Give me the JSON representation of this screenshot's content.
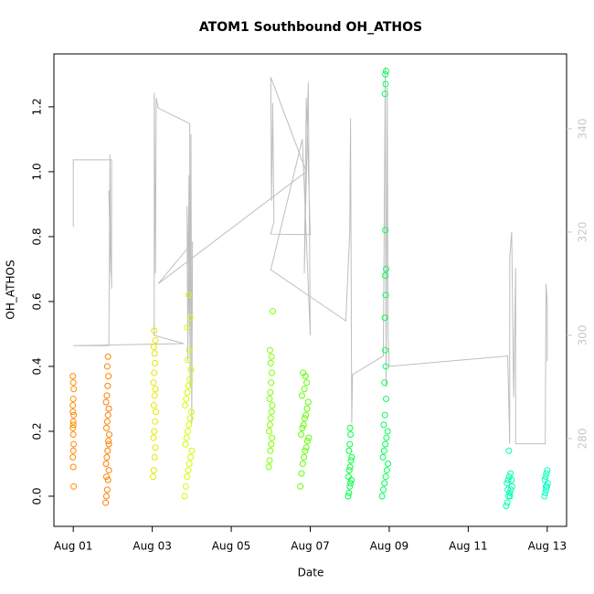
{
  "chart_data": {
    "type": "scatter",
    "title": "ATOM1 Southbound OH_ATHOS",
    "x_label": "Date",
    "y_label": "OH_ATHOS",
    "xlim": [
      0.51,
      13.49
    ],
    "ylim": [
      -0.093,
      1.363
    ],
    "y2lim": [
      263.0,
      354.5
    ],
    "xticks": [
      {
        "value": 1,
        "label": "Aug 01"
      },
      {
        "value": 3,
        "label": "Aug 03"
      },
      {
        "value": 5,
        "label": "Aug 05"
      },
      {
        "value": 7,
        "label": "Aug 07"
      },
      {
        "value": 9,
        "label": "Aug 09"
      },
      {
        "value": 11,
        "label": "Aug 11"
      },
      {
        "value": 13,
        "label": "Aug 13"
      }
    ],
    "yticks": [
      {
        "value": 0,
        "label": "0.0"
      },
      0.2,
      0.4,
      0.6,
      0.8,
      {
        "value": 1,
        "label": "1.0"
      },
      1.2
    ],
    "y2ticks": [
      280,
      300,
      320,
      340
    ],
    "y2_color": "#c8c8c8",
    "series": [
      {
        "color": "#ff8c00",
        "x": [
          0.99,
          1.0,
          1.01,
          1.0,
          0.99,
          1.01,
          1.0,
          0.99,
          1.0,
          1.01,
          1.0,
          0.99,
          1.0,
          1.01,
          1.0,
          0.99
        ],
        "values": [
          0.37,
          0.35,
          0.33,
          0.3,
          0.28,
          0.25,
          0.23,
          0.21,
          0.19,
          0.16,
          0.14,
          0.12,
          0.09,
          0.03,
          0.22,
          0.26
        ]
      },
      {
        "color": "#ff8000",
        "x": [
          1.82,
          1.84,
          1.86,
          1.88,
          1.9,
          1.83,
          1.85,
          1.87,
          1.89,
          1.91,
          1.84,
          1.86,
          1.88,
          1.9,
          1.83,
          1.85,
          1.87,
          1.89,
          1.86,
          1.88,
          1.84,
          1.9
        ],
        "values": [
          -0.02,
          0.0,
          0.02,
          0.05,
          0.08,
          0.1,
          0.12,
          0.14,
          0.17,
          0.19,
          0.21,
          0.23,
          0.25,
          0.27,
          0.29,
          0.31,
          0.34,
          0.37,
          0.4,
          0.43,
          0.06,
          0.16
        ]
      },
      {
        "color": "#e6e600",
        "x": [
          3.02,
          3.04,
          3.06,
          3.08,
          3.03,
          3.05,
          3.07,
          3.09,
          3.04,
          3.06,
          3.08,
          3.03,
          3.05,
          3.07,
          3.06,
          3.04,
          3.08,
          3.05
        ],
        "values": [
          0.06,
          0.08,
          0.12,
          0.15,
          0.18,
          0.2,
          0.23,
          0.26,
          0.28,
          0.31,
          0.33,
          0.35,
          0.38,
          0.41,
          0.44,
          0.46,
          0.48,
          0.51
        ]
      },
      {
        "color": "#ccff00",
        "x": [
          3.82,
          3.85,
          3.88,
          3.91,
          3.94,
          3.97,
          4.0,
          3.84,
          3.87,
          3.9,
          3.93,
          3.96,
          3.99,
          3.83,
          3.86,
          3.89,
          3.92,
          3.95,
          3.98,
          3.9,
          3.94,
          3.88,
          3.96,
          3.92
        ],
        "values": [
          0.0,
          0.03,
          0.06,
          0.08,
          0.1,
          0.12,
          0.14,
          0.16,
          0.18,
          0.2,
          0.22,
          0.24,
          0.26,
          0.28,
          0.3,
          0.32,
          0.34,
          0.36,
          0.39,
          0.42,
          0.45,
          0.52,
          0.55,
          0.62
        ]
      },
      {
        "color": "#80ff00",
        "x": [
          5.95,
          5.97,
          5.99,
          6.01,
          6.03,
          5.96,
          5.98,
          6.0,
          6.02,
          6.04,
          5.97,
          5.99,
          6.01,
          6.03,
          6.0,
          6.02,
          5.98,
          6.05
        ],
        "values": [
          0.09,
          0.11,
          0.14,
          0.16,
          0.18,
          0.2,
          0.22,
          0.24,
          0.26,
          0.28,
          0.3,
          0.32,
          0.35,
          0.38,
          0.41,
          0.43,
          0.45,
          0.57
        ]
      },
      {
        "color": "#5fff00",
        "x": [
          6.75,
          6.78,
          6.81,
          6.84,
          6.87,
          6.9,
          6.93,
          6.96,
          6.77,
          6.8,
          6.83,
          6.86,
          6.89,
          6.92,
          6.95,
          6.79,
          6.85,
          6.91,
          6.88,
          6.82
        ],
        "values": [
          0.03,
          0.07,
          0.1,
          0.12,
          0.14,
          0.15,
          0.17,
          0.18,
          0.19,
          0.21,
          0.22,
          0.24,
          0.25,
          0.27,
          0.29,
          0.31,
          0.33,
          0.35,
          0.37,
          0.38
        ]
      },
      {
        "color": "#00ff40",
        "x": [
          7.96,
          7.98,
          8.0,
          8.02,
          8.04,
          7.97,
          7.99,
          8.01,
          8.03,
          8.05,
          7.98,
          8.0,
          8.02,
          8.01
        ],
        "values": [
          0.0,
          0.01,
          0.03,
          0.04,
          0.05,
          0.06,
          0.08,
          0.09,
          0.11,
          0.12,
          0.14,
          0.16,
          0.19,
          0.21
        ]
      },
      {
        "color": "#00ff55",
        "x": [
          8.82,
          8.85,
          8.88,
          8.91,
          8.94,
          8.97,
          8.84,
          8.87,
          8.9,
          8.93,
          8.96,
          8.86,
          8.89,
          8.92,
          8.88,
          8.91,
          8.9,
          8.89,
          8.91,
          8.9,
          8.92,
          8.9,
          8.89,
          8.91,
          8.9,
          8.92
        ],
        "values": [
          0.0,
          0.02,
          0.04,
          0.06,
          0.08,
          0.1,
          0.12,
          0.14,
          0.16,
          0.18,
          0.2,
          0.22,
          0.25,
          0.3,
          0.35,
          0.4,
          0.45,
          0.55,
          0.62,
          0.68,
          0.7,
          0.82,
          1.24,
          1.27,
          1.3,
          1.31
        ]
      },
      {
        "color": "#00ffb0",
        "x": [
          11.96,
          11.99,
          12.02,
          12.05,
          12.08,
          12.11,
          11.98,
          12.01,
          12.04,
          12.07,
          12.1,
          12.0,
          12.06,
          12.03
        ],
        "values": [
          -0.03,
          -0.02,
          0.0,
          0.01,
          0.02,
          0.03,
          0.04,
          0.05,
          0.06,
          0.07,
          0.05,
          0.02,
          0.0,
          0.14
        ]
      },
      {
        "color": "#00ffc0",
        "x": [
          12.93,
          12.95,
          12.97,
          12.99,
          13.01,
          12.94,
          12.96,
          12.98,
          13.0,
          12.97
        ],
        "values": [
          0.0,
          0.01,
          0.02,
          0.03,
          0.04,
          0.05,
          0.06,
          0.07,
          0.08,
          0.03
        ]
      },
      {
        "color": "#bebebe",
        "axis": "y2",
        "x": [
          1.0,
          1.0,
          1.97,
          1.97,
          1.9,
          1.95,
          1.93,
          1.9,
          1.0,
          3.8,
          3.05,
          3.05,
          3.08,
          3.1,
          3.15,
          3.95,
          3.95,
          3.88,
          3.9,
          3.93,
          3.96,
          3.98,
          4.0,
          4.02,
          3.15,
          6.9,
          6.0,
          6.02,
          6.05,
          6.08,
          6.0,
          7.0,
          6.9,
          6.85,
          6.95,
          7.0,
          6.8,
          6.0,
          7.9,
          8.0,
          8.02,
          8.05,
          8.07,
          8.85,
          8.9,
          8.92,
          8.95,
          8.97,
          9.0,
          12.0,
          12.05,
          12.05,
          12.1,
          12.15,
          12.2,
          12.2,
          12.95,
          12.97,
          13.0,
          13.0
        ],
        "values": [
          321,
          334,
          334,
          309,
          328,
          312,
          335,
          298,
          298,
          298.4,
          300,
          347,
          312,
          346,
          344,
          341,
          300,
          325,
          295,
          331,
          290,
          339,
          283,
          318,
          310,
          331.7,
          350,
          326,
          345,
          322,
          319.6,
          319.5,
          346,
          312,
          349,
          300,
          338,
          312.7,
          302.8,
          320,
          342,
          283,
          292.4,
          296,
          352,
          290,
          348,
          300,
          294,
          296,
          279,
          315,
          320,
          288,
          313,
          279,
          279,
          310,
          306,
          295
        ]
      }
    ]
  }
}
